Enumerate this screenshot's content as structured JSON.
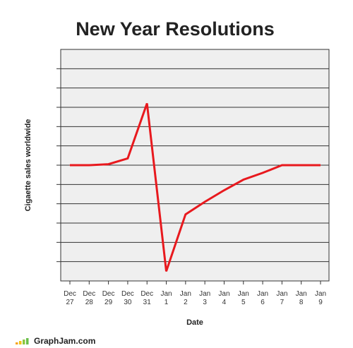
{
  "chart_data": {
    "type": "line",
    "title": "New Year Resolutions",
    "xlabel": "Date",
    "ylabel": "Cigaette sales worldwide",
    "categories": [
      [
        "Dec",
        "27"
      ],
      [
        "Dec",
        "28"
      ],
      [
        "Dec",
        "29"
      ],
      [
        "Dec",
        "30"
      ],
      [
        "Dec",
        "31"
      ],
      [
        "Jan",
        "1"
      ],
      [
        "Jan",
        "2"
      ],
      [
        "Jan",
        "3"
      ],
      [
        "Jan",
        "4"
      ],
      [
        "Jan",
        "5"
      ],
      [
        "Jan",
        "6"
      ],
      [
        "Jan",
        "7"
      ],
      [
        "Jan",
        "8"
      ],
      [
        "Jan",
        "9"
      ]
    ],
    "values": [
      6.0,
      6.0,
      6.05,
      6.35,
      9.2,
      0.5,
      3.45,
      4.1,
      4.7,
      5.25,
      5.6,
      6.0,
      6.0,
      6.0
    ],
    "ylim": [
      0,
      12
    ],
    "y_gridlines": 12,
    "grid": true,
    "y_tick_labels_shown": false,
    "colors": {
      "line": "#e8191e",
      "plot_background": "#efefef",
      "grid": "#333333"
    }
  },
  "watermark": {
    "text": "GraphJam.com",
    "colors": [
      "#f5a623",
      "#f0c419",
      "#8cc63f",
      "#6abf4b"
    ]
  }
}
